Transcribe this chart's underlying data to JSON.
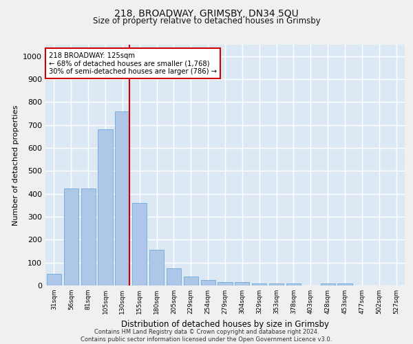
{
  "title": "218, BROADWAY, GRIMSBY, DN34 5QU",
  "subtitle": "Size of property relative to detached houses in Grimsby",
  "xlabel": "Distribution of detached houses by size in Grimsby",
  "ylabel": "Number of detached properties",
  "categories": [
    "31sqm",
    "56sqm",
    "81sqm",
    "105sqm",
    "130sqm",
    "155sqm",
    "180sqm",
    "205sqm",
    "229sqm",
    "254sqm",
    "279sqm",
    "304sqm",
    "329sqm",
    "353sqm",
    "378sqm",
    "403sqm",
    "428sqm",
    "453sqm",
    "477sqm",
    "502sqm",
    "527sqm"
  ],
  "values": [
    50,
    422,
    422,
    682,
    760,
    360,
    155,
    75,
    38,
    25,
    15,
    15,
    8,
    8,
    8,
    0,
    8,
    8,
    0,
    0,
    0
  ],
  "bar_color": "#aec6e8",
  "bar_edgecolor": "#5a9fd4",
  "red_line_index": 4,
  "annotation_title": "218 BROADWAY: 125sqm",
  "annotation_line1": "← 68% of detached houses are smaller (1,768)",
  "annotation_line2": "30% of semi-detached houses are larger (786) →",
  "annotation_box_color": "#ffffff",
  "annotation_box_edgecolor": "#cc0000",
  "ylim": [
    0,
    1050
  ],
  "yticks": [
    0,
    100,
    200,
    300,
    400,
    500,
    600,
    700,
    800,
    900,
    1000
  ],
  "background_color": "#dce9f5",
  "grid_color": "#ffffff",
  "fig_background": "#f0f0f0",
  "footer_line1": "Contains HM Land Registry data © Crown copyright and database right 2024.",
  "footer_line2": "Contains public sector information licensed under the Open Government Licence v3.0."
}
